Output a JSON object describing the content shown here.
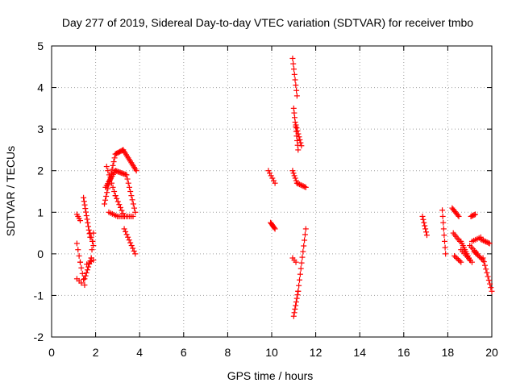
{
  "chart_data": {
    "type": "scatter",
    "title": "Day 277 of 2019, Sidereal Day-to-day VTEC variation (SDTVAR) for receiver tmbo",
    "xlabel": "GPS time / hours",
    "ylabel": "SDTVAR / TECUs",
    "xlim": [
      0,
      20
    ],
    "ylim": [
      -2,
      5
    ],
    "xticks": [
      "0",
      "2",
      "4",
      "6",
      "8",
      "10",
      "12",
      "14",
      "16",
      "18",
      "20"
    ],
    "yticks": [
      "-2",
      "-1",
      "0",
      "1",
      "2",
      "3",
      "4",
      "5"
    ],
    "grid": true,
    "marker": "+",
    "color": "#ff0000",
    "series": [
      {
        "name": "SDTVAR",
        "segments": [
          {
            "x0": 1.15,
            "x1": 1.3,
            "y0": 0.95,
            "y1": 0.8,
            "n": 4
          },
          {
            "x0": 1.15,
            "x1": 1.3,
            "y0": 0.25,
            "y1": -0.2,
            "n": 4
          },
          {
            "x0": 1.15,
            "x1": 1.35,
            "y0": -0.6,
            "y1": -0.7,
            "n": 3
          },
          {
            "x0": 1.3,
            "x1": 1.5,
            "y0": -0.2,
            "y1": -0.75,
            "n": 5
          },
          {
            "x0": 1.45,
            "x1": 1.75,
            "y0": 1.35,
            "y1": 0.4,
            "n": 12
          },
          {
            "x0": 1.75,
            "x1": 1.9,
            "y0": 0.5,
            "y1": 0.2,
            "n": 4
          },
          {
            "x0": 1.5,
            "x1": 1.8,
            "y0": -0.6,
            "y1": -0.1,
            "n": 8
          },
          {
            "x0": 1.8,
            "x1": 1.9,
            "y0": -0.1,
            "y1": 0.5,
            "n": 4
          },
          {
            "x0": 1.6,
            "x1": 1.9,
            "y0": -0.25,
            "y1": -0.15,
            "n": 4
          },
          {
            "x0": 2.4,
            "x1": 2.9,
            "y0": 1.2,
            "y1": 2.4,
            "n": 14
          },
          {
            "x0": 2.9,
            "x1": 3.25,
            "y0": 2.4,
            "y1": 2.5,
            "n": 8
          },
          {
            "x0": 3.25,
            "x1": 3.85,
            "y0": 2.5,
            "y1": 2.0,
            "n": 14
          },
          {
            "x0": 2.45,
            "x1": 2.9,
            "y0": 1.6,
            "y1": 2.0,
            "n": 10
          },
          {
            "x0": 2.9,
            "x1": 3.4,
            "y0": 2.0,
            "y1": 1.9,
            "n": 10
          },
          {
            "x0": 3.4,
            "x1": 3.8,
            "y0": 1.9,
            "y1": 1.0,
            "n": 10
          },
          {
            "x0": 2.5,
            "x1": 2.9,
            "y0": 2.1,
            "y1": 1.4,
            "n": 8
          },
          {
            "x0": 2.9,
            "x1": 3.3,
            "y0": 1.4,
            "y1": 0.9,
            "n": 8
          },
          {
            "x0": 2.6,
            "x1": 3.0,
            "y0": 1.0,
            "y1": 0.9,
            "n": 6
          },
          {
            "x0": 3.0,
            "x1": 3.7,
            "y0": 0.9,
            "y1": 0.9,
            "n": 10
          },
          {
            "x0": 3.3,
            "x1": 3.8,
            "y0": 0.6,
            "y1": 0.0,
            "n": 10
          },
          {
            "x0": 9.85,
            "x1": 10.15,
            "y0": 2.0,
            "y1": 1.7,
            "n": 6
          },
          {
            "x0": 9.95,
            "x1": 10.15,
            "y0": 0.75,
            "y1": 0.6,
            "n": 7
          },
          {
            "x0": 10.95,
            "x1": 11.15,
            "y0": 4.7,
            "y1": 3.8,
            "n": 8
          },
          {
            "x0": 11.0,
            "x1": 11.2,
            "y0": 3.5,
            "y1": 2.5,
            "n": 10
          },
          {
            "x0": 11.1,
            "x1": 11.35,
            "y0": 3.1,
            "y1": 2.6,
            "n": 8
          },
          {
            "x0": 10.95,
            "x1": 11.15,
            "y0": 2.0,
            "y1": 1.7,
            "n": 6
          },
          {
            "x0": 11.15,
            "x1": 11.55,
            "y0": 1.7,
            "y1": 1.6,
            "n": 8
          },
          {
            "x0": 10.95,
            "x1": 11.1,
            "y0": -0.1,
            "y1": -0.2,
            "n": 3
          },
          {
            "x0": 11.0,
            "x1": 11.2,
            "y0": -1.5,
            "y1": -0.9,
            "n": 8
          },
          {
            "x0": 11.2,
            "x1": 11.55,
            "y0": -0.9,
            "y1": 0.6,
            "n": 12
          },
          {
            "x0": 16.85,
            "x1": 17.05,
            "y0": 0.9,
            "y1": 0.45,
            "n": 7
          },
          {
            "x0": 17.75,
            "x1": 17.9,
            "y0": 1.05,
            "y1": 0.0,
            "n": 8
          },
          {
            "x0": 18.2,
            "x1": 18.5,
            "y0": 1.1,
            "y1": 0.9,
            "n": 8
          },
          {
            "x0": 18.25,
            "x1": 18.55,
            "y0": 0.5,
            "y1": 0.3,
            "n": 6
          },
          {
            "x0": 18.3,
            "x1": 18.6,
            "y0": -0.05,
            "y1": -0.2,
            "n": 6
          },
          {
            "x0": 18.6,
            "x1": 19.0,
            "y0": 0.3,
            "y1": -0.15,
            "n": 10
          },
          {
            "x0": 18.6,
            "x1": 19.1,
            "y0": 0.1,
            "y1": -0.2,
            "n": 8
          },
          {
            "x0": 19.05,
            "x1": 19.25,
            "y0": 0.9,
            "y1": 0.95,
            "n": 5
          },
          {
            "x0": 19.0,
            "x1": 19.35,
            "y0": 0.2,
            "y1": 0.0,
            "n": 6
          },
          {
            "x0": 19.1,
            "x1": 19.5,
            "y0": 0.3,
            "y1": 0.4,
            "n": 6
          },
          {
            "x0": 19.5,
            "x1": 19.9,
            "y0": 0.35,
            "y1": 0.25,
            "n": 8
          },
          {
            "x0": 19.2,
            "x1": 19.6,
            "y0": 0.05,
            "y1": -0.15,
            "n": 8
          },
          {
            "x0": 19.6,
            "x1": 20.0,
            "y0": -0.1,
            "y1": -0.9,
            "n": 10
          }
        ]
      }
    ]
  }
}
